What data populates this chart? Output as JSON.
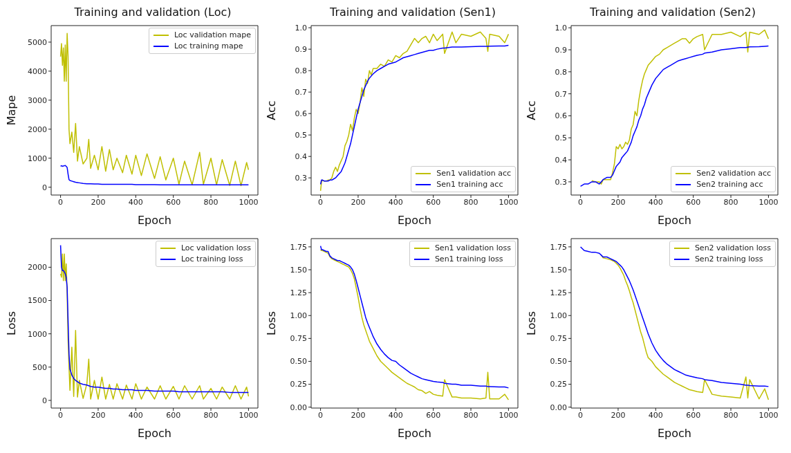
{
  "chart_data": [
    {
      "type": "line",
      "title": "Training and validation (Loc)",
      "xlabel": "Epoch",
      "ylabel": "Mape",
      "legend": "top right",
      "xlim": [
        -50,
        1050
      ],
      "xticks": [
        0,
        200,
        400,
        600,
        800,
        1000
      ],
      "ylim": [
        -270,
        5570
      ],
      "yticks": [
        0,
        1000,
        2000,
        3000,
        4000,
        5000
      ],
      "x": [
        0,
        5,
        10,
        15,
        20,
        25,
        30,
        35,
        40,
        45,
        50,
        60,
        70,
        80,
        90,
        100,
        120,
        140,
        150,
        160,
        180,
        200,
        220,
        240,
        260,
        280,
        300,
        330,
        350,
        380,
        400,
        430,
        460,
        500,
        530,
        560,
        600,
        630,
        660,
        700,
        740,
        760,
        800,
        830,
        860,
        900,
        930,
        960,
        990,
        1000
      ],
      "series": [
        {
          "name": "Loc validation mape",
          "color": "#bfbf00",
          "values": [
            4500,
            4950,
            4200,
            4800,
            3650,
            4900,
            3650,
            5300,
            4500,
            2000,
            1500,
            1900,
            1200,
            2200,
            900,
            1400,
            800,
            1000,
            1650,
            650,
            1100,
            600,
            1400,
            550,
            1300,
            600,
            1000,
            500,
            1100,
            450,
            1100,
            400,
            1150,
            300,
            1050,
            250,
            1000,
            100,
            900,
            80,
            1200,
            100,
            1000,
            80,
            950,
            60,
            900,
            50,
            850,
            600
          ]
        },
        {
          "name": "Loc training mape",
          "color": "#0000ff",
          "values": [
            720,
            740,
            720,
            730,
            740,
            750,
            720,
            680,
            450,
            260,
            230,
            210,
            190,
            170,
            160,
            150,
            130,
            120,
            120,
            120,
            110,
            110,
            100,
            100,
            100,
            100,
            100,
            100,
            100,
            100,
            90,
            90,
            90,
            90,
            80,
            80,
            80,
            80,
            80,
            80,
            80,
            80,
            80,
            80,
            80,
            80,
            80,
            80,
            80,
            80
          ]
        }
      ]
    },
    {
      "type": "line",
      "title": "Training and validation (Sen1)",
      "xlabel": "Epoch",
      "ylabel": "Acc",
      "legend": "bottom right",
      "xlim": [
        -50,
        1050
      ],
      "xticks": [
        0,
        200,
        400,
        600,
        800,
        1000
      ],
      "ylim": [
        0.22,
        1.01
      ],
      "yticks": [
        0.3,
        0.4,
        0.5,
        0.6,
        0.7,
        0.8,
        0.9,
        {
          "value": 1,
          "label": "1.0"
        }
      ],
      "x": [
        0,
        5,
        10,
        20,
        30,
        40,
        50,
        60,
        70,
        80,
        90,
        100,
        110,
        120,
        130,
        140,
        150,
        160,
        170,
        180,
        190,
        200,
        210,
        220,
        230,
        240,
        250,
        260,
        270,
        280,
        300,
        320,
        340,
        360,
        380,
        400,
        420,
        440,
        460,
        480,
        500,
        520,
        540,
        560,
        580,
        600,
        620,
        650,
        660,
        700,
        720,
        750,
        800,
        850,
        880,
        890,
        900,
        950,
        980,
        1000
      ],
      "series": [
        {
          "name": "Sen1 validation acc",
          "color": "#bfbf00",
          "values": [
            0.24,
            0.28,
            0.29,
            0.285,
            0.285,
            0.29,
            0.29,
            0.3,
            0.33,
            0.35,
            0.33,
            0.36,
            0.38,
            0.4,
            0.45,
            0.47,
            0.5,
            0.55,
            0.52,
            0.58,
            0.62,
            0.6,
            0.65,
            0.72,
            0.68,
            0.76,
            0.74,
            0.8,
            0.78,
            0.81,
            0.81,
            0.83,
            0.82,
            0.85,
            0.84,
            0.87,
            0.86,
            0.88,
            0.89,
            0.92,
            0.95,
            0.93,
            0.95,
            0.96,
            0.93,
            0.97,
            0.94,
            0.97,
            0.88,
            0.98,
            0.93,
            0.97,
            0.96,
            0.98,
            0.95,
            0.89,
            0.97,
            0.96,
            0.93,
            0.97
          ]
        },
        {
          "name": "Sen1 training acc",
          "color": "#0000ff",
          "values": [
            0.27,
            0.29,
            0.29,
            0.285,
            0.285,
            0.285,
            0.29,
            0.29,
            0.295,
            0.3,
            0.31,
            0.32,
            0.33,
            0.35,
            0.37,
            0.4,
            0.43,
            0.46,
            0.5,
            0.54,
            0.58,
            0.62,
            0.65,
            0.68,
            0.71,
            0.73,
            0.75,
            0.765,
            0.775,
            0.785,
            0.8,
            0.81,
            0.82,
            0.83,
            0.835,
            0.84,
            0.85,
            0.86,
            0.865,
            0.87,
            0.875,
            0.88,
            0.885,
            0.89,
            0.895,
            0.895,
            0.9,
            0.905,
            0.905,
            0.91,
            0.91,
            0.91,
            0.912,
            0.913,
            0.913,
            0.913,
            0.914,
            0.915,
            0.915,
            0.918
          ]
        }
      ]
    },
    {
      "type": "line",
      "title": "Training and validation (Sen2)",
      "xlabel": "Epoch",
      "ylabel": "Acc",
      "legend": "bottom right",
      "xlim": [
        -50,
        1050
      ],
      "xticks": [
        0,
        200,
        400,
        600,
        800,
        1000
      ],
      "ylim": [
        0.24,
        1.01
      ],
      "yticks": [
        0.3,
        0.4,
        0.5,
        0.6,
        0.7,
        0.8,
        0.9,
        {
          "value": 1,
          "label": "1.0"
        }
      ],
      "x": [
        0,
        20,
        40,
        60,
        80,
        100,
        110,
        120,
        140,
        160,
        170,
        180,
        190,
        200,
        210,
        220,
        230,
        240,
        250,
        260,
        270,
        280,
        290,
        300,
        310,
        320,
        330,
        340,
        350,
        360,
        380,
        400,
        420,
        440,
        460,
        480,
        500,
        520,
        540,
        560,
        580,
        600,
        620,
        650,
        660,
        700,
        750,
        800,
        850,
        880,
        890,
        900,
        950,
        980,
        1000
      ],
      "series": [
        {
          "name": "Sen2 validation acc",
          "color": "#bfbf00",
          "values": [
            null,
            null,
            null,
            0.305,
            0.3,
            0.3,
            0.29,
            0.31,
            0.31,
            0.31,
            0.34,
            0.38,
            0.46,
            0.45,
            0.47,
            0.45,
            0.46,
            0.48,
            0.47,
            0.49,
            0.54,
            0.56,
            0.62,
            0.6,
            0.67,
            0.72,
            0.76,
            0.79,
            0.81,
            0.83,
            0.85,
            0.87,
            0.88,
            0.9,
            0.91,
            0.92,
            0.93,
            0.94,
            0.95,
            0.95,
            0.93,
            0.95,
            0.96,
            0.97,
            0.9,
            0.97,
            0.97,
            0.98,
            0.96,
            0.98,
            0.89,
            0.98,
            0.97,
            0.99,
            0.95
          ]
        },
        {
          "name": "Sen2 training acc",
          "color": "#0000ff",
          "values": [
            0.28,
            0.29,
            0.29,
            0.3,
            0.3,
            0.29,
            0.3,
            0.31,
            0.32,
            0.32,
            0.33,
            0.35,
            0.37,
            0.38,
            0.39,
            0.41,
            0.42,
            0.43,
            0.44,
            0.46,
            0.48,
            0.51,
            0.53,
            0.55,
            0.58,
            0.6,
            0.63,
            0.65,
            0.68,
            0.7,
            0.74,
            0.77,
            0.79,
            0.81,
            0.82,
            0.83,
            0.84,
            0.85,
            0.855,
            0.86,
            0.865,
            0.87,
            0.875,
            0.88,
            0.885,
            0.89,
            0.9,
            0.905,
            0.91,
            0.91,
            0.912,
            0.913,
            0.914,
            0.916,
            0.917
          ]
        }
      ]
    },
    {
      "type": "line",
      "xlabel": "Epoch",
      "ylabel": "Loss",
      "legend": "top right",
      "xlim": [
        -50,
        1050
      ],
      "xticks": [
        0,
        200,
        400,
        600,
        800,
        1000
      ],
      "ylim": [
        -115,
        2430
      ],
      "yticks": [
        0,
        500,
        1000,
        1500,
        2000
      ],
      "x": [
        0,
        5,
        10,
        15,
        20,
        25,
        30,
        35,
        40,
        45,
        50,
        60,
        70,
        80,
        90,
        100,
        120,
        140,
        150,
        160,
        180,
        200,
        220,
        240,
        260,
        280,
        300,
        330,
        350,
        380,
        400,
        430,
        460,
        500,
        530,
        560,
        600,
        630,
        660,
        700,
        740,
        760,
        800,
        830,
        860,
        900,
        930,
        960,
        990,
        1000
      ],
      "series": [
        {
          "name": "Loc validation loss",
          "color": "#bfbf00",
          "values": [
            1900,
            1850,
            2200,
            1800,
            2200,
            1800,
            2050,
            1600,
            900,
            500,
            150,
            800,
            60,
            1050,
            50,
            300,
            30,
            250,
            620,
            20,
            300,
            20,
            350,
            20,
            240,
            20,
            250,
            20,
            230,
            20,
            250,
            20,
            200,
            20,
            220,
            20,
            210,
            20,
            220,
            20,
            220,
            20,
            180,
            20,
            200,
            20,
            220,
            20,
            200,
            60
          ]
        },
        {
          "name": "Loc training loss",
          "color": "#0000ff",
          "values": [
            2330,
            2000,
            1950,
            1950,
            1930,
            1900,
            1850,
            1700,
            1200,
            700,
            470,
            380,
            330,
            300,
            280,
            260,
            240,
            230,
            220,
            210,
            200,
            200,
            190,
            180,
            180,
            170,
            170,
            160,
            160,
            160,
            150,
            150,
            150,
            140,
            140,
            140,
            140,
            130,
            130,
            130,
            130,
            130,
            130,
            130,
            130,
            120,
            120,
            120,
            120,
            120
          ]
        }
      ]
    },
    {
      "type": "line",
      "xlabel": "Epoch",
      "ylabel": "Loss",
      "legend": "top right",
      "xlim": [
        -50,
        1050
      ],
      "xticks": [
        0,
        200,
        400,
        600,
        800,
        1000
      ],
      "ylim": [
        -0.01,
        1.84
      ],
      "yticks": [
        {
          "value": 0,
          "label": "0.00"
        },
        {
          "value": 0.25,
          "label": "0.25"
        },
        {
          "value": 0.5,
          "label": "0.50"
        },
        {
          "value": 0.75,
          "label": "0.75"
        },
        {
          "value": 1,
          "label": "1.00"
        },
        {
          "value": 1.25,
          "label": "1.25"
        },
        {
          "value": 1.5,
          "label": "1.50"
        },
        {
          "value": 1.75,
          "label": "1.75"
        }
      ],
      "x": [
        0,
        5,
        10,
        20,
        30,
        40,
        50,
        60,
        70,
        80,
        90,
        100,
        110,
        120,
        130,
        140,
        150,
        160,
        170,
        180,
        190,
        200,
        210,
        220,
        230,
        240,
        250,
        260,
        270,
        280,
        300,
        320,
        340,
        360,
        380,
        400,
        420,
        440,
        460,
        480,
        500,
        520,
        540,
        560,
        580,
        600,
        620,
        650,
        660,
        700,
        720,
        750,
        800,
        850,
        880,
        890,
        900,
        950,
        980,
        1000
      ],
      "series": [
        {
          "name": "Sen1 validation loss",
          "color": "#bfbf00",
          "values": [
            1.72,
            1.71,
            1.71,
            1.7,
            1.69,
            1.68,
            1.64,
            1.62,
            1.61,
            1.6,
            1.59,
            1.58,
            1.57,
            1.56,
            1.55,
            1.54,
            1.53,
            1.5,
            1.46,
            1.4,
            1.3,
            1.2,
            1.08,
            0.98,
            0.9,
            0.84,
            0.78,
            0.72,
            0.68,
            0.64,
            0.56,
            0.5,
            0.46,
            0.42,
            0.38,
            0.35,
            0.32,
            0.29,
            0.26,
            0.24,
            0.22,
            0.19,
            0.18,
            0.15,
            0.17,
            0.14,
            0.13,
            0.12,
            0.3,
            0.11,
            0.11,
            0.1,
            0.1,
            0.09,
            0.1,
            0.38,
            0.09,
            0.09,
            0.14,
            0.08
          ]
        },
        {
          "name": "Sen1 training loss",
          "color": "#0000ff",
          "values": [
            1.76,
            1.72,
            1.72,
            1.71,
            1.7,
            1.7,
            1.65,
            1.63,
            1.62,
            1.61,
            1.6,
            1.6,
            1.59,
            1.58,
            1.57,
            1.56,
            1.55,
            1.53,
            1.5,
            1.45,
            1.38,
            1.3,
            1.22,
            1.14,
            1.06,
            0.98,
            0.92,
            0.87,
            0.82,
            0.77,
            0.69,
            0.63,
            0.58,
            0.54,
            0.51,
            0.5,
            0.46,
            0.43,
            0.4,
            0.37,
            0.35,
            0.33,
            0.31,
            0.3,
            0.29,
            0.28,
            0.275,
            0.27,
            0.26,
            0.25,
            0.25,
            0.24,
            0.24,
            0.23,
            0.23,
            0.225,
            0.225,
            0.22,
            0.22,
            0.21
          ]
        }
      ]
    },
    {
      "type": "line",
      "xlabel": "Epoch",
      "ylabel": "Loss",
      "legend": "top right",
      "xlim": [
        -50,
        1050
      ],
      "xticks": [
        0,
        200,
        400,
        600,
        800,
        1000
      ],
      "ylim": [
        -0.01,
        1.84
      ],
      "yticks": [
        {
          "value": 0,
          "label": "0.00"
        },
        {
          "value": 0.25,
          "label": "0.25"
        },
        {
          "value": 0.5,
          "label": "0.50"
        },
        {
          "value": 0.75,
          "label": "0.75"
        },
        {
          "value": 1,
          "label": "1.00"
        },
        {
          "value": 1.25,
          "label": "1.25"
        },
        {
          "value": 1.5,
          "label": "1.50"
        },
        {
          "value": 1.75,
          "label": "1.75"
        }
      ],
      "x": [
        0,
        20,
        40,
        60,
        80,
        100,
        110,
        120,
        140,
        160,
        170,
        180,
        190,
        200,
        210,
        220,
        230,
        240,
        250,
        260,
        270,
        280,
        290,
        300,
        310,
        320,
        330,
        340,
        350,
        360,
        380,
        400,
        420,
        440,
        460,
        480,
        500,
        520,
        540,
        560,
        580,
        600,
        620,
        650,
        660,
        700,
        750,
        800,
        850,
        880,
        890,
        900,
        950,
        980,
        1000
      ],
      "series": [
        {
          "name": "Sen2 validation loss",
          "color": "#bfbf00",
          "values": [
            null,
            null,
            null,
            null,
            null,
            null,
            1.66,
            1.63,
            1.62,
            1.61,
            1.6,
            1.59,
            1.57,
            1.55,
            1.52,
            1.48,
            1.44,
            1.38,
            1.33,
            1.27,
            1.2,
            1.14,
            1.06,
            0.98,
            0.9,
            0.82,
            0.76,
            0.68,
            0.6,
            0.54,
            0.5,
            0.44,
            0.4,
            0.36,
            0.33,
            0.3,
            0.27,
            0.25,
            0.23,
            0.21,
            0.19,
            0.18,
            0.17,
            0.16,
            0.3,
            0.14,
            0.12,
            0.11,
            0.1,
            0.33,
            0.1,
            0.3,
            0.09,
            0.2,
            0.08
          ]
        },
        {
          "name": "Sen2 training loss",
          "color": "#0000ff",
          "values": [
            1.75,
            1.71,
            1.7,
            1.69,
            1.69,
            1.68,
            1.66,
            1.64,
            1.64,
            1.62,
            1.61,
            1.6,
            1.59,
            1.57,
            1.55,
            1.53,
            1.5,
            1.46,
            1.42,
            1.38,
            1.33,
            1.28,
            1.22,
            1.16,
            1.1,
            1.04,
            0.98,
            0.92,
            0.86,
            0.8,
            0.7,
            0.62,
            0.56,
            0.51,
            0.47,
            0.44,
            0.41,
            0.39,
            0.37,
            0.35,
            0.34,
            0.33,
            0.32,
            0.31,
            0.3,
            0.29,
            0.27,
            0.26,
            0.25,
            0.24,
            0.24,
            0.235,
            0.23,
            0.23,
            0.225
          ]
        }
      ]
    }
  ]
}
